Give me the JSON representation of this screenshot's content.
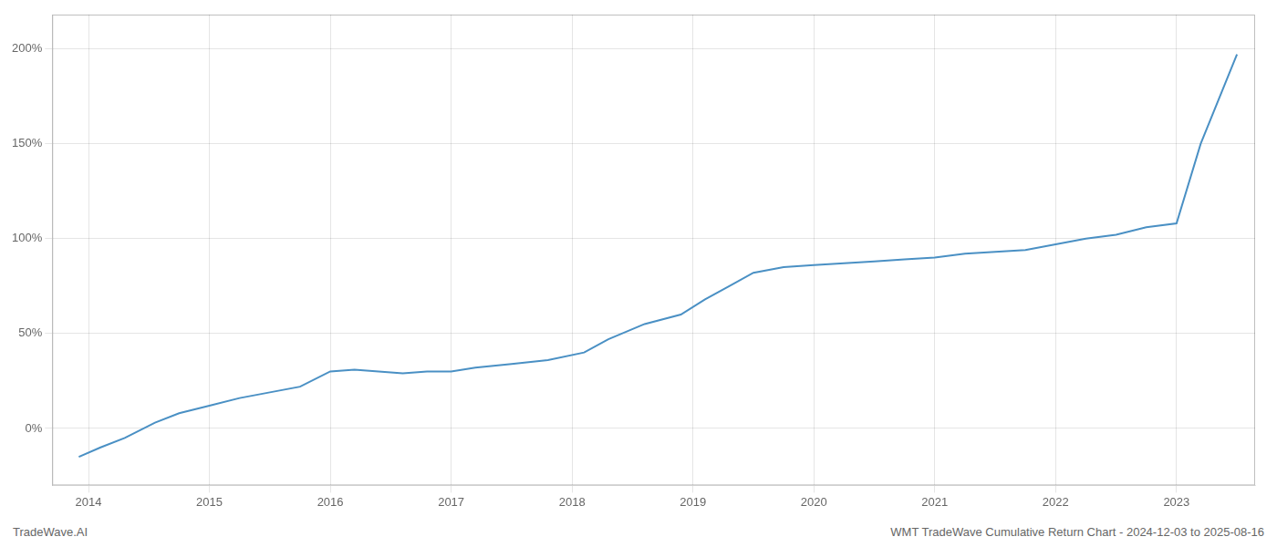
{
  "chart_data": {
    "type": "line",
    "x": [
      2013.92,
      2014.1,
      2014.3,
      2014.55,
      2014.75,
      2015.0,
      2015.25,
      2015.5,
      2015.75,
      2016.0,
      2016.2,
      2016.4,
      2016.6,
      2016.8,
      2017.0,
      2017.2,
      2017.5,
      2017.8,
      2018.1,
      2018.3,
      2018.6,
      2018.9,
      2019.1,
      2019.3,
      2019.5,
      2019.75,
      2020.0,
      2020.25,
      2020.5,
      2020.75,
      2021.0,
      2021.25,
      2021.5,
      2021.75,
      2022.0,
      2022.25,
      2022.5,
      2022.75,
      2023.0,
      2023.2,
      2023.5
    ],
    "values": [
      -15,
      -10,
      -5,
      3,
      8,
      12,
      16,
      19,
      22,
      30,
      31,
      30,
      29,
      30,
      30,
      32,
      34,
      36,
      40,
      47,
      55,
      60,
      68,
      75,
      82,
      85,
      86,
      87,
      88,
      89,
      90,
      92,
      93,
      94,
      97,
      100,
      102,
      106,
      108,
      150,
      197
    ],
    "color": "#4a90c4",
    "xlim": [
      2013.7,
      2023.65
    ],
    "xticks": [
      2014,
      2015,
      2016,
      2017,
      2018,
      2019,
      2020,
      2021,
      2022,
      2023
    ],
    "ylim": [
      -30,
      218
    ],
    "yticks": [
      {
        "value": 0,
        "label": "0%"
      },
      {
        "value": 50,
        "label": "50%"
      },
      {
        "value": 100,
        "label": "100%"
      },
      {
        "value": 150,
        "label": "150%"
      },
      {
        "value": 200,
        "label": "200%"
      }
    ],
    "grid": true,
    "annotations": [
      "TradeWave.AI",
      "WMT TradeWave Cumulative Return Chart - 2024-12-03 to 2025-08-16"
    ]
  }
}
